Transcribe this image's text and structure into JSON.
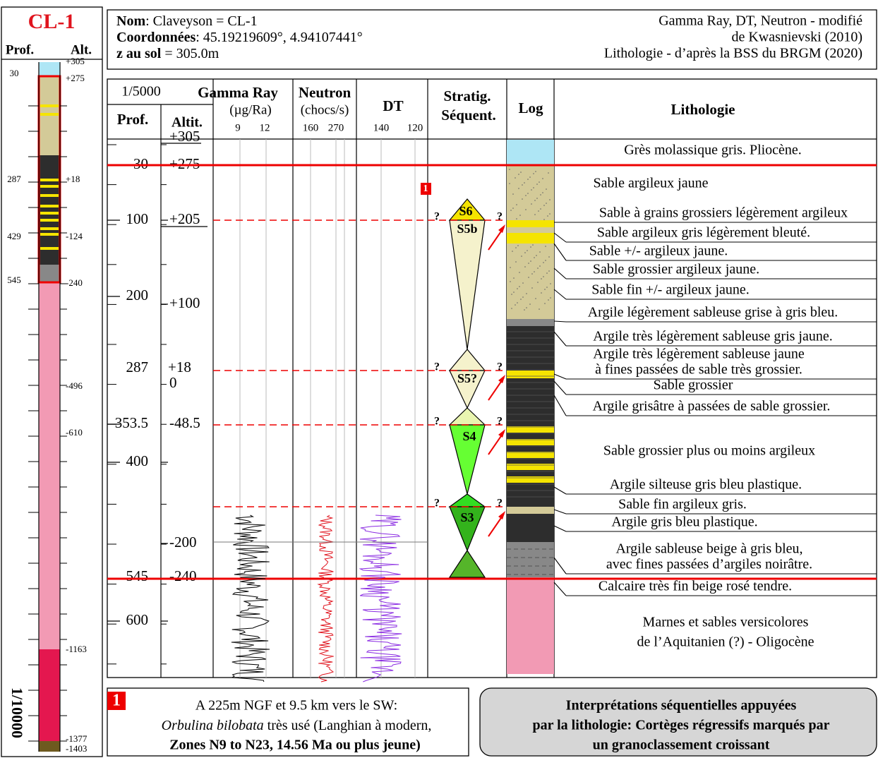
{
  "well": {
    "id": "CL-1",
    "prof_label": "Prof.",
    "alt_label": "Alt.",
    "depths": [
      "30",
      "287",
      "429",
      "545"
    ],
    "alts": [
      "+305",
      "+275",
      "+18",
      "-124",
      "-240",
      "-496",
      "-610",
      "-1163",
      "-1377",
      "-1403"
    ],
    "scale": "1/10000"
  },
  "header": {
    "name_label": "Nom",
    "name_value": ": Claveyson = CL-1",
    "coords_label": "Coordonnées",
    "coords_value": ": 45.19219609°, 4.94107441°",
    "ground_label": "z au sol",
    "ground_value": " = 305.0m",
    "credits": [
      "Gamma Ray, DT, Neutron - modifié",
      "de Kwasnievski (2010)",
      "Lithologie - d’après la BSS du BRGM (2020)"
    ]
  },
  "columns": {
    "scale": "1/5000",
    "prof": "Prof.",
    "altit": "Altit.",
    "gamma": "Gamma Ray",
    "gamma_unit": "(µg/Ra)",
    "gamma_ticks": [
      "9",
      "12"
    ],
    "neutron": "Neutron",
    "neutron_unit": "(chocs/s)",
    "neutron_ticks": [
      "160",
      "270"
    ],
    "dt": "DT",
    "dt_ticks": [
      "140",
      "120"
    ],
    "strat": [
      "Stratig.",
      "Séquent."
    ],
    "log": "Log",
    "litho": "Lithologie"
  },
  "prof_labels": [
    "30",
    "100",
    "200",
    "287",
    "353.5",
    "400",
    "545",
    "600"
  ],
  "alt_labels": [
    "+305",
    "+275",
    "+205",
    "+100",
    "+18",
    "0",
    "-48.5",
    "-200",
    "-240"
  ],
  "sequences": [
    "S6",
    "S5b",
    "S5?",
    "S4",
    "S3"
  ],
  "uncertain": "?",
  "marker": "1",
  "lithology": [
    [
      "Grès molassique gris. Pliocène."
    ],
    [
      "Sable argileux jaune"
    ],
    [
      "Sable à grains grossiers légèrement argileux"
    ],
    [
      "Sable argileux gris légèrement bleuté."
    ],
    [
      "Sable +/- argileux jaune."
    ],
    [
      "Sable grossier argileux jaune."
    ],
    [
      "Sable fin +/- argileux jaune."
    ],
    [
      "Argile légèrement sableuse grise à gris bleu."
    ],
    [
      "Argile très légèrement sableuse gris jaune."
    ],
    [
      "Argile très légèrement sableuse jaune",
      "à fines passées de sable très grossier."
    ],
    [
      "Sable grossier"
    ],
    [
      "Argile grisâtre à passées de sable grossier."
    ],
    [
      "Sable grossier plus ou moins argileux"
    ],
    [
      "Argile silteuse gris bleu plastique."
    ],
    [
      "Sable fin argileux gris."
    ],
    [
      "Argile gris bleu plastique."
    ],
    [
      "Argile sableuse beige à gris bleu,",
      "avec fines passées d’argiles noirâtre."
    ],
    [
      "Calcaire très fin beige rosé tendre."
    ],
    [
      "Marnes et sables versicolores",
      "de l’Aquitanien (?) - Oligocène"
    ]
  ],
  "note": {
    "number": "1",
    "line1": "A 225m NGF et 9.5 km vers le SW:",
    "species": "Orbulina bilobata",
    "line2": " très usé (Langhian à modern,",
    "line3": "Zones N9 to N23, 14.56 Ma ou plus jeune)"
  },
  "interpretation": [
    "Interprétations séquentielles appuyées",
    "par la lithologie: Cortèges régressifs marqués par",
    "un granoclassement croissant"
  ]
}
